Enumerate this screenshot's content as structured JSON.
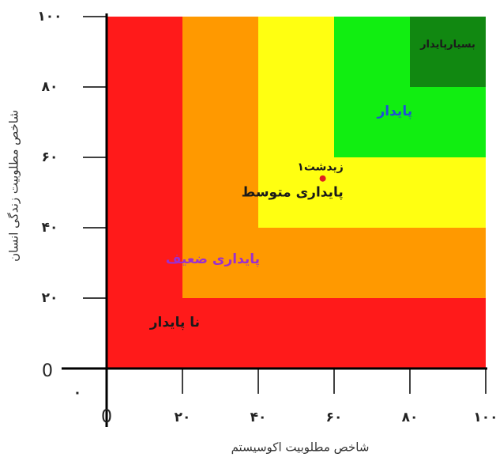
{
  "chart_data": {
    "type": "heatmap",
    "title": "",
    "xlabel": "شاخص مطلوبیت اکوسیستم",
    "ylabel": "شاخص مطلوبیت زندگی انسان",
    "xlim": [
      0,
      100
    ],
    "ylim": [
      0,
      100
    ],
    "x_ticks": [
      {
        "value": 0,
        "label": "0"
      },
      {
        "value": 20,
        "label": "۲۰"
      },
      {
        "value": 40,
        "label": "۴۰"
      },
      {
        "value": 60,
        "label": "۶۰"
      },
      {
        "value": 80,
        "label": "۸۰"
      },
      {
        "value": 100,
        "label": "۱۰۰"
      }
    ],
    "y_ticks": [
      {
        "value": 0,
        "label": "0"
      },
      {
        "value": 20,
        "label": "۲۰"
      },
      {
        "value": 40,
        "label": "۴۰"
      },
      {
        "value": 60,
        "label": "۶۰"
      },
      {
        "value": 80,
        "label": "۸۰"
      },
      {
        "value": 100,
        "label": "۱۰۰"
      }
    ],
    "origin_label": "۰",
    "zones": [
      {
        "label": "نا پایدار",
        "min": 0,
        "max": 100,
        "color": "#ff1a1a",
        "label_color": "#1a1a1a",
        "label_at": [
          18,
          13
        ]
      },
      {
        "label": "پایداری ضعیف",
        "min": 20,
        "max": 100,
        "color": "#ff9900",
        "label_color": "#9b2fd0",
        "label_at": [
          28,
          31
        ]
      },
      {
        "label": "پایداری متوسط",
        "min": 40,
        "max": 100,
        "color": "#ffff11",
        "label_color": "#1a1a1a",
        "label_at": [
          49,
          50
        ]
      },
      {
        "label": "پایدار",
        "min": 60,
        "max": 100,
        "color": "#11ee11",
        "label_color": "#1f4fd8",
        "label_at": [
          76,
          73
        ]
      },
      {
        "label": "بسیارپایدار",
        "min": 80,
        "max": 100,
        "color": "#118811",
        "label_color": "#1a1a1a",
        "label_at": [
          90,
          92
        ]
      }
    ],
    "points": [
      {
        "label": "زیدشت۱",
        "x": 57,
        "y": 54,
        "color": "#e02020"
      }
    ],
    "grid": false
  }
}
